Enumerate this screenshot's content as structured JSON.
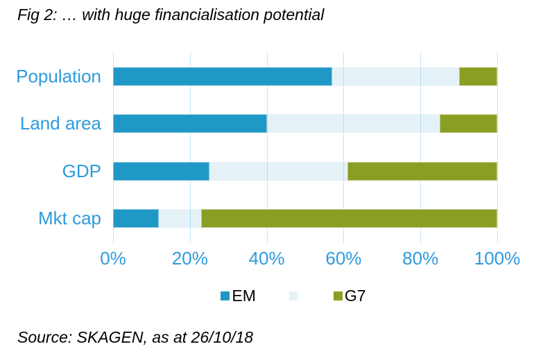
{
  "chart_data": {
    "type": "bar",
    "orientation": "horizontal",
    "stacked": true,
    "title": "Fig 2: … with huge financialisation potential",
    "source": "Source: SKAGEN, as at 26/10/18",
    "categories": [
      "Population",
      "Land area",
      "GDP",
      "Mkt cap"
    ],
    "series": [
      {
        "name": "EM",
        "color": "#2098C5",
        "values": [
          57,
          40,
          25,
          12
        ]
      },
      {
        "name": "",
        "color": "#E7F2F8",
        "bar_fill": "rgba(32,152,197,0.12)",
        "values": [
          33,
          45,
          36,
          11
        ]
      },
      {
        "name": "G7",
        "color": "#8A9E23",
        "values": [
          10,
          15,
          39,
          77
        ]
      }
    ],
    "x_ticks": [
      "0%",
      "20%",
      "40%",
      "60%",
      "80%",
      "100%"
    ],
    "xlim": [
      0,
      100
    ],
    "unit": "%",
    "grid": "vertical",
    "legend_position": "bottom",
    "colors": {
      "axis_label": "#2D9BDC",
      "category_label": "#2D9BDC",
      "gridline": "#C8E4F4",
      "legend_text": "#000000",
      "title_text": "#000000"
    }
  }
}
